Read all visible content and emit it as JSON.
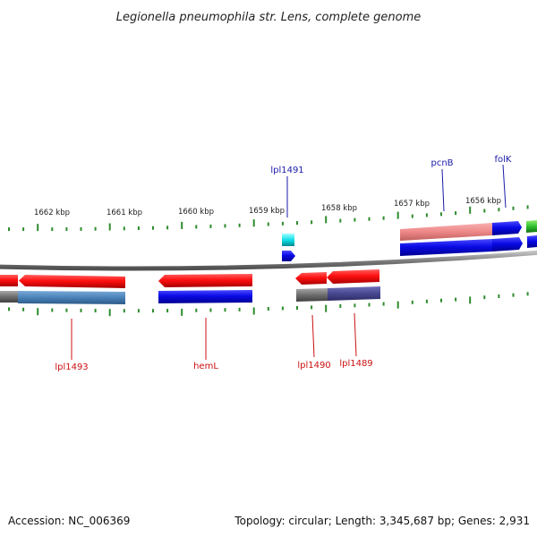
{
  "title": "Legionella pneumophila str. Lens, complete genome",
  "accession": "Accession: NC_006369",
  "summary": "Topology: circular; Length: 3,345,687 bp; Genes: 2,931",
  "colors": {
    "forward": "#1a1aa8",
    "reverse": "#cc1111",
    "tick": "#2e8b2e",
    "backbone": "#7a7a7a"
  },
  "scale": {
    "unit": "kbp",
    "labels": [
      "1662 kbp",
      "1661 kbp",
      "1660 kbp",
      "1659 kbp",
      "1658 kbp",
      "1657 kbp",
      "1656 kbp"
    ]
  },
  "genes": [
    {
      "name": "lpl1491",
      "strand": "forward",
      "color": "cyan"
    },
    {
      "name": "pcnB",
      "strand": "forward",
      "color": "pink"
    },
    {
      "name": "folK",
      "strand": "forward",
      "color": "blue"
    },
    {
      "name": "lpl1493",
      "strand": "reverse",
      "color": "red"
    },
    {
      "name": "hemL",
      "strand": "reverse",
      "color": "red"
    },
    {
      "name": "lpl1490",
      "strand": "reverse",
      "color": "red"
    },
    {
      "name": "lpl1489",
      "strand": "reverse",
      "color": "red"
    }
  ]
}
